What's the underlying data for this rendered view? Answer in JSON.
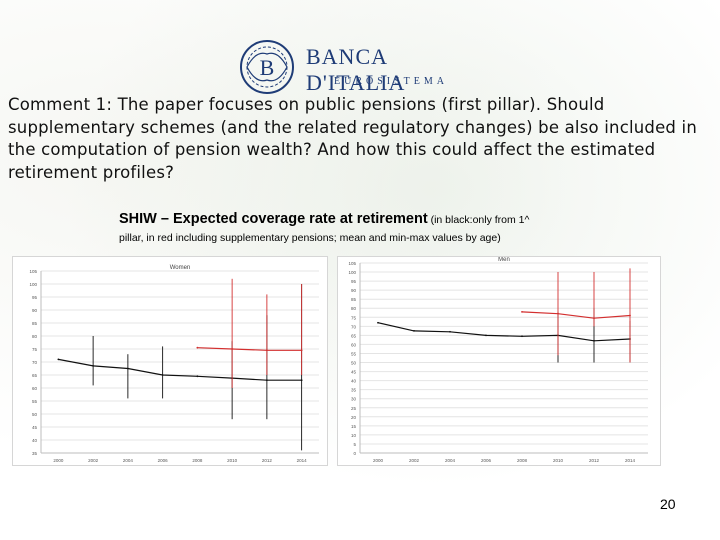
{
  "logo": {
    "name": "BANCA D'ITALIA",
    "subtitle": "EUROSISTEMA",
    "monogram": "B"
  },
  "comment": "Comment 1: The paper focuses on public pensions (first pillar). Should supplementary schemes (and the related regulatory changes) be also included in the computation of pension wealth? And how this could affect the estimated retirement profiles?",
  "figure": {
    "title_main": "SHIW – Expected coverage rate at retirement",
    "title_note_start": " (in black:only from 1^",
    "title_line2": "pillar, in red including supplementary pensions; mean and min-max values by age)"
  },
  "colors": {
    "first_pillar": "#111111",
    "supplementary": "#d32f2f",
    "grid": "#e4e4e4"
  },
  "chart_data": [
    {
      "type": "line",
      "title": "Women",
      "x": [
        "2000",
        "2002",
        "2004",
        "2006",
        "2008",
        "2010",
        "2012",
        "2014"
      ],
      "ylim": [
        35,
        105
      ],
      "yticks": [
        35,
        40,
        45,
        50,
        55,
        60,
        65,
        70,
        75,
        80,
        85,
        90,
        95,
        100,
        105
      ],
      "grid": true,
      "series": [
        {
          "key": "first_pillar",
          "values": [
            71,
            68.5,
            67.5,
            65,
            64.5,
            63.8,
            63,
            63
          ],
          "min": [
            null,
            61,
            56,
            56,
            null,
            48,
            48,
            36
          ],
          "max": [
            null,
            80,
            73,
            76,
            null,
            78,
            88,
            100
          ]
        },
        {
          "key": "supplementary",
          "x_from": 4,
          "values": [
            null,
            null,
            null,
            null,
            75.5,
            75,
            74.5,
            74.5
          ],
          "min": [
            null,
            null,
            null,
            null,
            null,
            60,
            65,
            65
          ],
          "max": [
            null,
            null,
            null,
            null,
            null,
            102,
            96,
            100
          ]
        }
      ]
    },
    {
      "type": "line",
      "title": "Men",
      "x": [
        "2000",
        "2002",
        "2004",
        "2006",
        "2008",
        "2010",
        "2012",
        "2014"
      ],
      "ylim": [
        0,
        105
      ],
      "yticks": [
        0,
        5,
        10,
        15,
        20,
        25,
        30,
        35,
        40,
        45,
        50,
        55,
        60,
        65,
        70,
        75,
        80,
        85,
        90,
        95,
        100,
        105
      ],
      "grid": true,
      "series": [
        {
          "key": "first_pillar",
          "values": [
            72,
            67.5,
            67,
            65,
            64.5,
            65,
            62,
            63
          ],
          "min": [
            null,
            null,
            null,
            null,
            null,
            50,
            50,
            50
          ],
          "max": [
            null,
            null,
            null,
            null,
            null,
            78,
            80,
            73
          ]
        },
        {
          "key": "supplementary",
          "values": [
            null,
            null,
            null,
            null,
            78,
            77,
            74.5,
            76
          ],
          "min": [
            null,
            null,
            null,
            null,
            null,
            54,
            70,
            50
          ],
          "max": [
            null,
            null,
            null,
            null,
            null,
            100,
            100,
            102
          ]
        }
      ]
    }
  ],
  "page_number": "20"
}
